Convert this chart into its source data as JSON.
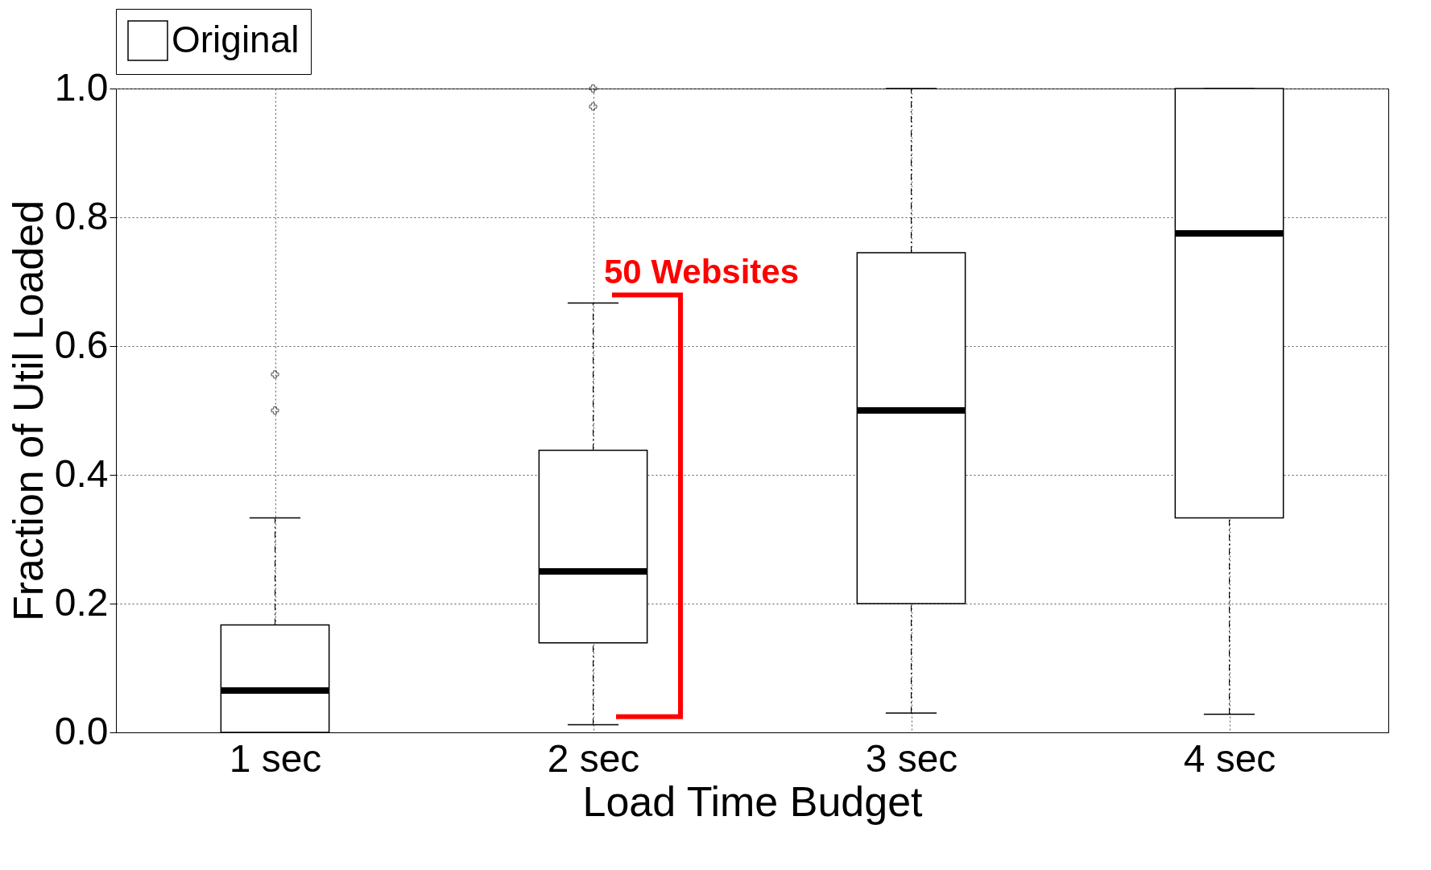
{
  "chart_data": {
    "type": "box",
    "xlabel": "Load Time Budget",
    "ylabel": "Fraction of Util Loaded",
    "categories": [
      "1 sec",
      "2 sec",
      "3 sec",
      "4 sec"
    ],
    "series": [
      {
        "name": "Original",
        "color": "#000000",
        "boxes": [
          {
            "low": 0,
            "q1": 0,
            "median": 0.065,
            "q3": 0.167,
            "high": 0.333,
            "outliers": [
              0.5,
              0.556
            ]
          },
          {
            "low": 0.012,
            "q1": 0.139,
            "median": 0.25,
            "q3": 0.438,
            "high": 0.667,
            "outliers": [
              0.972,
              1.0
            ]
          },
          {
            "low": 0.03,
            "q1": 0.2,
            "median": 0.5,
            "q3": 0.745,
            "high": 1.0
          },
          {
            "low": 0.028,
            "q1": 0.333,
            "median": 0.775,
            "q3": 1.0,
            "high": 1.0
          }
        ]
      }
    ],
    "ylim": [
      0,
      1
    ],
    "yticks": [
      {
        "value": 0,
        "label": "0.0"
      },
      0.2,
      0.4,
      0.6,
      0.8,
      {
        "value": 1,
        "label": "1.0"
      }
    ],
    "grid": true,
    "legend": "top",
    "annotations": [
      "50 Websites"
    ]
  }
}
